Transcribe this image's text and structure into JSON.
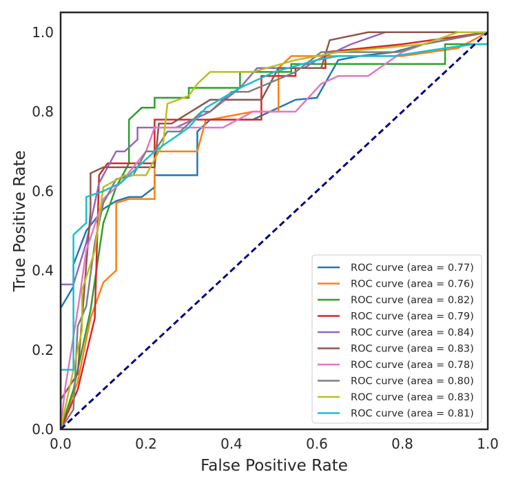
{
  "chart_data": {
    "type": "line",
    "title": "",
    "xlabel": "False Positive Rate",
    "ylabel": "True Positive Rate",
    "xlim": [
      0.0,
      1.0
    ],
    "ylim": [
      0.0,
      1.05
    ],
    "xticks": [
      "0.0",
      "0.2",
      "0.4",
      "0.6",
      "0.8",
      "1.0"
    ],
    "yticks": [
      "0.0",
      "0.2",
      "0.4",
      "0.6",
      "0.8",
      "1.0"
    ],
    "grid": false,
    "legend_position": "lower-right",
    "diagonal": {
      "x": [
        0,
        1
      ],
      "y": [
        0,
        1
      ],
      "color": "#000080",
      "style": "dashed"
    },
    "series": [
      {
        "name": "ROC curve (area = 0.77)",
        "color": "#1f77b4",
        "x": [
          0,
          0,
          0.03,
          0.03,
          0.06,
          0.1,
          0.13,
          0.16,
          0.19,
          0.22,
          0.22,
          0.26,
          0.32,
          0.32,
          0.35,
          0.45,
          0.55,
          0.6,
          0.65,
          0.7,
          0.78,
          0.85,
          1.0
        ],
        "y": [
          0,
          0.305,
          0.36,
          0.415,
          0.5,
          0.555,
          0.575,
          0.585,
          0.585,
          0.61,
          0.64,
          0.64,
          0.64,
          0.75,
          0.78,
          0.78,
          0.83,
          0.835,
          0.93,
          0.94,
          0.95,
          0.97,
          1.0
        ]
      },
      {
        "name": "ROC curve (area = 0.76)",
        "color": "#ff7f0e",
        "x": [
          0,
          0.04,
          0.07,
          0.1,
          0.13,
          0.13,
          0.16,
          0.22,
          0.22,
          0.32,
          0.34,
          0.35,
          0.45,
          0.51,
          0.51,
          0.54,
          0.65,
          0.72,
          0.8,
          0.93,
          1.0
        ],
        "y": [
          0,
          0.12,
          0.28,
          0.37,
          0.4,
          0.57,
          0.58,
          0.58,
          0.7,
          0.7,
          0.78,
          0.78,
          0.8,
          0.8,
          0.91,
          0.94,
          0.94,
          0.94,
          0.94,
          0.96,
          1.0
        ]
      },
      {
        "name": "ROC curve (area = 0.82)",
        "color": "#2ca02c",
        "x": [
          0,
          0.03,
          0.07,
          0.1,
          0.13,
          0.16,
          0.16,
          0.19,
          0.22,
          0.22,
          0.3,
          0.3,
          0.42,
          0.42,
          0.54,
          0.54,
          0.64,
          0.9,
          0.9,
          1.0
        ],
        "y": [
          0,
          0.1,
          0.3,
          0.52,
          0.61,
          0.67,
          0.78,
          0.81,
          0.81,
          0.835,
          0.835,
          0.86,
          0.86,
          0.9,
          0.9,
          0.92,
          0.92,
          0.92,
          0.97,
          0.97
        ]
      },
      {
        "name": "ROC curve (area = 0.79)",
        "color": "#d62728",
        "x": [
          0,
          0.04,
          0.08,
          0.09,
          0.11,
          0.17,
          0.22,
          0.22,
          0.25,
          0.35,
          0.47,
          0.47,
          0.55,
          0.55,
          0.62,
          0.62,
          0.8,
          0.8,
          1.0
        ],
        "y": [
          0,
          0.1,
          0.28,
          0.64,
          0.67,
          0.67,
          0.67,
          0.78,
          0.78,
          0.78,
          0.78,
          0.89,
          0.89,
          0.91,
          0.91,
          0.95,
          0.97,
          0.97,
          1.0
        ]
      },
      {
        "name": "ROC curve (area = 0.84)",
        "color": "#9467bd",
        "x": [
          0,
          0.0,
          0.03,
          0.06,
          0.09,
          0.13,
          0.15,
          0.18,
          0.18,
          0.22,
          0.27,
          0.35,
          0.42,
          0.46,
          0.57,
          0.6,
          0.68,
          0.76,
          0.85,
          1.0
        ],
        "y": [
          0,
          0.365,
          0.365,
          0.47,
          0.62,
          0.7,
          0.7,
          0.73,
          0.76,
          0.76,
          0.76,
          0.8,
          0.86,
          0.91,
          0.91,
          0.93,
          0.97,
          1.0,
          1.0,
          1.0
        ]
      },
      {
        "name": "ROC curve (area = 0.83)",
        "color": "#8c564b",
        "x": [
          0,
          0.0,
          0.04,
          0.07,
          0.07,
          0.1,
          0.14,
          0.19,
          0.22,
          0.23,
          0.26,
          0.35,
          0.47,
          0.51,
          0.61,
          0.63,
          0.72,
          1.0
        ],
        "y": [
          0,
          0.075,
          0.14,
          0.55,
          0.645,
          0.66,
          0.66,
          0.66,
          0.66,
          0.77,
          0.77,
          0.83,
          0.83,
          0.91,
          0.91,
          0.98,
          1.0,
          1.0
        ]
      },
      {
        "name": "ROC curve (area = 0.78)",
        "color": "#e377c2",
        "x": [
          0,
          0.01,
          0.04,
          0.06,
          0.1,
          0.14,
          0.2,
          0.22,
          0.28,
          0.38,
          0.45,
          0.55,
          0.61,
          0.65,
          0.72,
          0.76,
          0.8,
          0.85,
          1.0
        ],
        "y": [
          0,
          0.1,
          0.3,
          0.45,
          0.58,
          0.62,
          0.7,
          0.76,
          0.76,
          0.76,
          0.8,
          0.8,
          0.87,
          0.89,
          0.89,
          0.92,
          0.95,
          0.97,
          1.0
        ]
      },
      {
        "name": "ROC curve (area = 0.80)",
        "color": "#7f7f7f",
        "x": [
          0,
          0.03,
          0.04,
          0.06,
          0.08,
          0.1,
          0.13,
          0.17,
          0.2,
          0.22,
          0.25,
          0.28,
          0.33,
          0.35,
          0.4,
          0.44,
          0.55,
          0.61,
          0.7,
          0.79,
          0.85,
          1.0
        ],
        "y": [
          0,
          0.05,
          0.26,
          0.31,
          0.47,
          0.57,
          0.63,
          0.64,
          0.7,
          0.7,
          0.75,
          0.75,
          0.8,
          0.8,
          0.85,
          0.85,
          0.9,
          0.95,
          0.95,
          0.95,
          0.97,
          1.0
        ]
      },
      {
        "name": "ROC curve (area = 0.83)",
        "color": "#bcbd22",
        "x": [
          0,
          0.05,
          0.05,
          0.08,
          0.1,
          0.15,
          0.2,
          0.24,
          0.25,
          0.3,
          0.32,
          0.35,
          0.38,
          0.45,
          0.55,
          0.65,
          0.75,
          0.85,
          0.93,
          1.0
        ],
        "y": [
          0,
          0.25,
          0.35,
          0.45,
          0.61,
          0.64,
          0.64,
          0.72,
          0.82,
          0.84,
          0.87,
          0.9,
          0.9,
          0.9,
          0.93,
          0.95,
          0.96,
          0.97,
          1.0,
          1.0
        ]
      },
      {
        "name": "ROC curve (area = 0.81)",
        "color": "#17becf",
        "x": [
          0,
          0.0,
          0.03,
          0.03,
          0.06,
          0.06,
          0.1,
          0.14,
          0.18,
          0.22,
          0.26,
          0.3,
          0.34,
          0.42,
          0.5,
          0.6,
          0.65,
          0.78,
          0.9,
          0.97,
          1.0
        ],
        "y": [
          0,
          0.15,
          0.15,
          0.49,
          0.52,
          0.585,
          0.6,
          0.62,
          0.66,
          0.7,
          0.73,
          0.76,
          0.81,
          0.86,
          0.9,
          0.93,
          0.94,
          0.94,
          0.96,
          0.97,
          0.97
        ]
      }
    ]
  }
}
